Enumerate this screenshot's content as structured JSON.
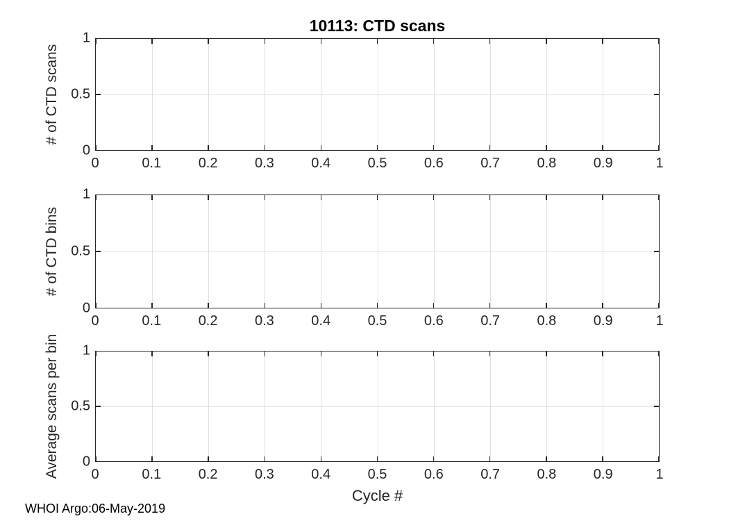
{
  "figure": {
    "footer": "WHOI Argo:06-May-2019",
    "colors": {
      "background": "#ffffff",
      "axis": "#262626",
      "grid": "#e0e0e0",
      "tick_label": "#262626",
      "title": "#000000"
    }
  },
  "chart_data": [
    {
      "type": "line",
      "title": "10113: CTD scans",
      "ylabel": "# of CTD scans",
      "xlabel": "",
      "xlim": [
        0,
        1
      ],
      "ylim": [
        0,
        1
      ],
      "xticks": [
        0,
        0.1,
        0.2,
        0.3,
        0.4,
        0.5,
        0.6,
        0.7,
        0.8,
        0.9,
        1
      ],
      "xtick_labels": [
        "0",
        "0.1",
        "0.2",
        "0.3",
        "0.4",
        "0.5",
        "0.6",
        "0.7",
        "0.8",
        "0.9",
        "1"
      ],
      "yticks": [
        0,
        0.5,
        1
      ],
      "ytick_labels": [
        "0",
        "0.5",
        "1"
      ],
      "grid": true,
      "legend": null,
      "series": []
    },
    {
      "type": "line",
      "title": "",
      "ylabel": "# of CTD bins",
      "xlabel": "",
      "xlim": [
        0,
        1
      ],
      "ylim": [
        0,
        1
      ],
      "xticks": [
        0,
        0.1,
        0.2,
        0.3,
        0.4,
        0.5,
        0.6,
        0.7,
        0.8,
        0.9,
        1
      ],
      "xtick_labels": [
        "0",
        "0.1",
        "0.2",
        "0.3",
        "0.4",
        "0.5",
        "0.6",
        "0.7",
        "0.8",
        "0.9",
        "1"
      ],
      "yticks": [
        0,
        0.5,
        1
      ],
      "ytick_labels": [
        "0",
        "0.5",
        "1"
      ],
      "grid": true,
      "legend": null,
      "series": []
    },
    {
      "type": "line",
      "title": "",
      "ylabel": "Average scans per bin",
      "xlabel": "Cycle #",
      "xlim": [
        0,
        1
      ],
      "ylim": [
        0,
        1
      ],
      "xticks": [
        0,
        0.1,
        0.2,
        0.3,
        0.4,
        0.5,
        0.6,
        0.7,
        0.8,
        0.9,
        1
      ],
      "xtick_labels": [
        "0",
        "0.1",
        "0.2",
        "0.3",
        "0.4",
        "0.5",
        "0.6",
        "0.7",
        "0.8",
        "0.9",
        "1"
      ],
      "yticks": [
        0,
        0.5,
        1
      ],
      "ytick_labels": [
        "0",
        "0.5",
        "1"
      ],
      "grid": true,
      "legend": null,
      "series": []
    }
  ]
}
